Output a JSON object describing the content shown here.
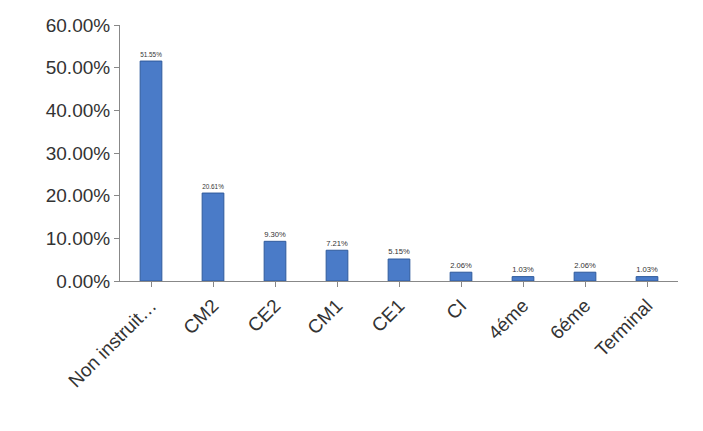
{
  "chart_data": {
    "type": "bar",
    "categories": [
      "Non instruit…",
      "CM2",
      "CE2",
      "CM1",
      "CE1",
      "CI",
      "4éme",
      "6éme",
      "Terminal"
    ],
    "values": [
      51.55,
      20.61,
      9.3,
      7.21,
      5.15,
      2.06,
      1.03,
      2.06,
      1.03
    ],
    "value_labels": [
      "51.55%",
      "20.61%",
      "9.30%",
      "7.21%",
      "5.15%",
      "2.06%",
      "1.03%",
      "2.06%",
      "1.03%"
    ],
    "data_labels": true,
    "color": "#4a7bc8",
    "ylim": [
      0,
      60
    ],
    "yticks": [
      {
        "value": 0,
        "label": "0.00%"
      },
      {
        "value": 10,
        "label": "10.00%"
      },
      {
        "value": 20,
        "label": "20.00%"
      },
      {
        "value": 30,
        "label": "30.00%"
      },
      {
        "value": 40,
        "label": "40.00%"
      },
      {
        "value": 50,
        "label": "50.00%"
      },
      {
        "value": 60,
        "label": "60.00%"
      }
    ],
    "grid": false
  }
}
